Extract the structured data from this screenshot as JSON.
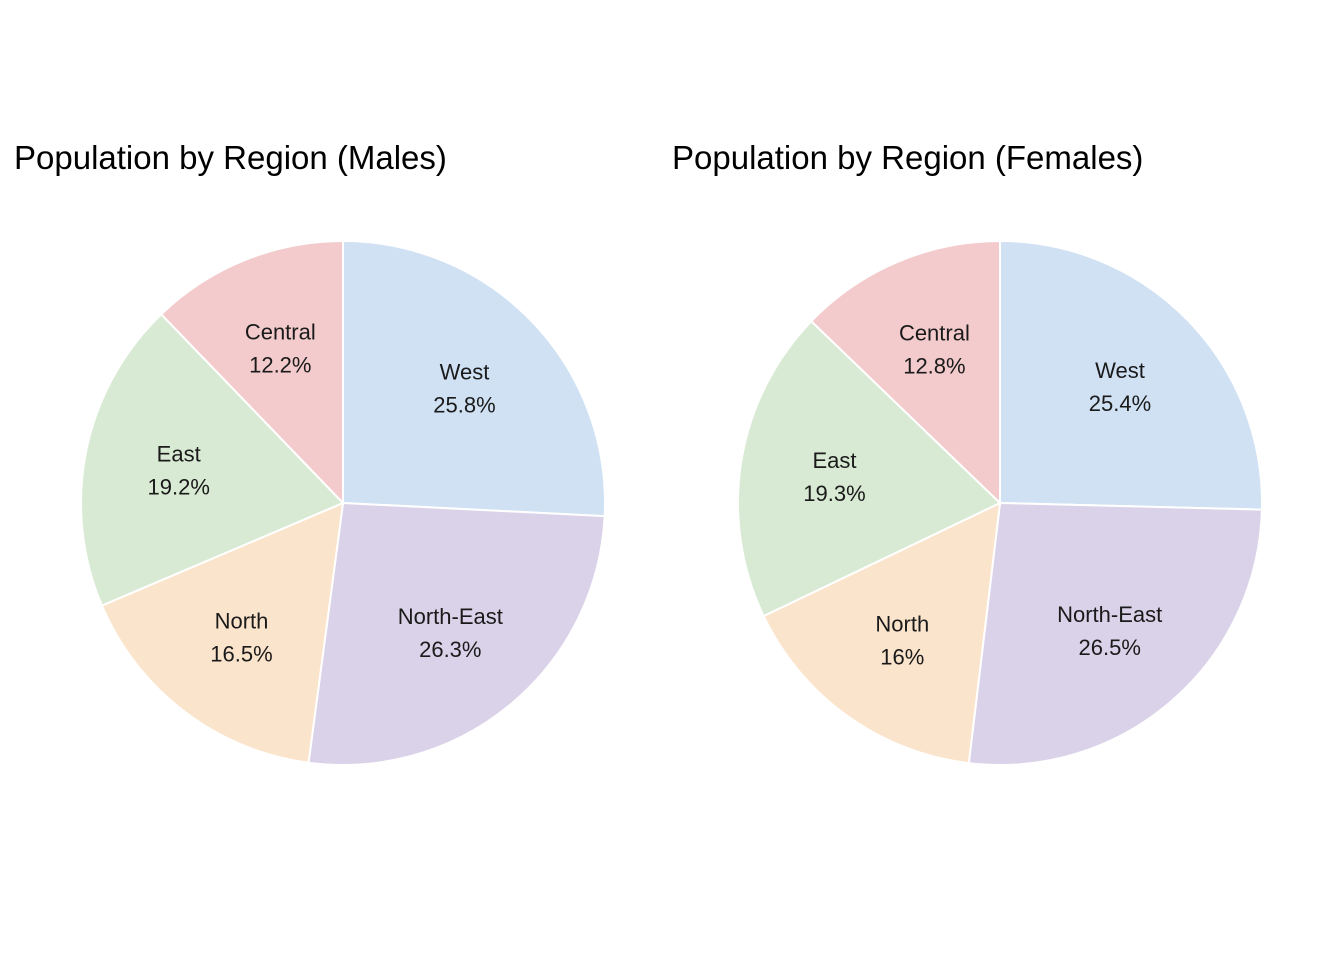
{
  "chart_data": [
    {
      "type": "pie",
      "title": "Population by Region (Males)",
      "start": "12 o'clock",
      "direction": "clockwise",
      "slice_border": "#ffffff",
      "slices": [
        {
          "label": "West",
          "value": 25.8,
          "display": "25.8%",
          "color": "#cfe1f3"
        },
        {
          "label": "North-East",
          "value": 26.3,
          "display": "26.3%",
          "color": "#dad2e8"
        },
        {
          "label": "North",
          "value": 16.5,
          "display": "16.5%",
          "color": "#fbe4cc"
        },
        {
          "label": "East",
          "value": 19.2,
          "display": "19.2%",
          "color": "#d8ead3"
        },
        {
          "label": "Central",
          "value": 12.2,
          "display": "12.2%",
          "color": "#f3cbcc"
        }
      ]
    },
    {
      "type": "pie",
      "title": "Population by Region (Females)",
      "start": "12 o'clock",
      "direction": "clockwise",
      "slice_border": "#ffffff",
      "slices": [
        {
          "label": "West",
          "value": 25.4,
          "display": "25.4%",
          "color": "#cfe1f3"
        },
        {
          "label": "North-East",
          "value": 26.5,
          "display": "26.5%",
          "color": "#dad2e8"
        },
        {
          "label": "North",
          "value": 16.0,
          "display": "16%",
          "color": "#fbe4cc"
        },
        {
          "label": "East",
          "value": 19.3,
          "display": "19.3%",
          "color": "#d8ead3"
        },
        {
          "label": "Central",
          "value": 12.8,
          "display": "12.8%",
          "color": "#f3cbcc"
        }
      ]
    }
  ]
}
